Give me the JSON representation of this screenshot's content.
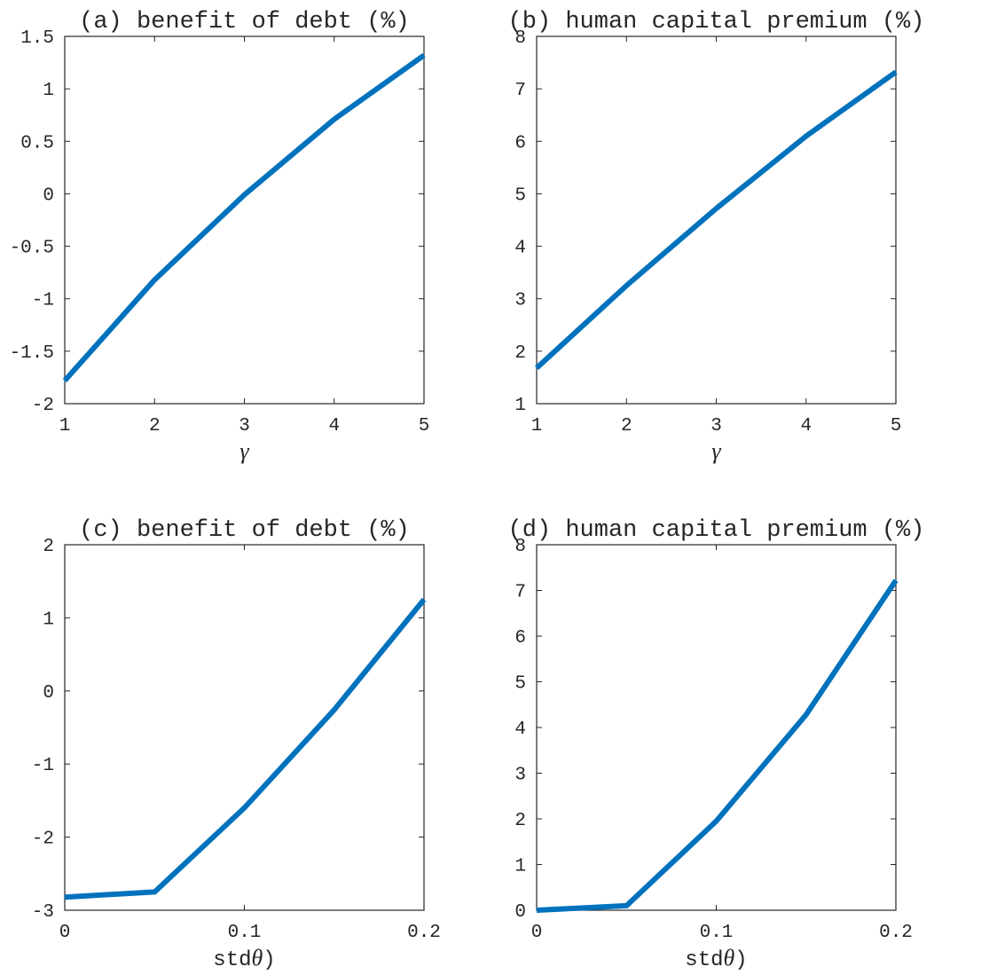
{
  "colors": {
    "series": "#0072bd",
    "axes": "#262626",
    "background": "#ffffff"
  },
  "chart_data": [
    {
      "type": "line",
      "title": "(a) benefit of debt (%)",
      "xlabel": "γ",
      "x": [
        1,
        2,
        3,
        4,
        5
      ],
      "series": [
        {
          "values": [
            -1.78,
            -0.82,
            -0.01,
            0.71,
            1.32
          ]
        }
      ],
      "xlim": [
        1,
        5
      ],
      "ylim": [
        -2,
        1.5
      ],
      "xticks": [
        1,
        2,
        3,
        4,
        5
      ],
      "xtick_labels": [
        "1",
        "2",
        "3",
        "4",
        "5"
      ],
      "yticks": [
        -2,
        -1.5,
        -1,
        -0.5,
        0,
        0.5,
        1,
        1.5
      ],
      "ytick_labels": [
        "-2",
        "-1.5",
        "-1",
        "-0.5",
        "0",
        "0.5",
        "1",
        "1.5"
      ],
      "grid": false
    },
    {
      "type": "line",
      "title": "(b) human capital premium (%)",
      "xlabel": "γ",
      "x": [
        1,
        2,
        3,
        4,
        5
      ],
      "series": [
        {
          "values": [
            1.68,
            3.25,
            4.72,
            6.1,
            7.32
          ]
        }
      ],
      "xlim": [
        1,
        5
      ],
      "ylim": [
        1,
        8
      ],
      "xticks": [
        1,
        2,
        3,
        4,
        5
      ],
      "xtick_labels": [
        "1",
        "2",
        "3",
        "4",
        "5"
      ],
      "yticks": [
        1,
        2,
        3,
        4,
        5,
        6,
        7,
        8
      ],
      "ytick_labels": [
        "1",
        "2",
        "3",
        "4",
        "5",
        "6",
        "7",
        "8"
      ],
      "grid": false
    },
    {
      "type": "line",
      "title": "(c) benefit of debt (%)",
      "xlabel_prefix": "std",
      "xlabel_symbol": "θ",
      "xlabel_suffix": ")",
      "x": [
        0,
        0.05,
        0.1,
        0.15,
        0.2
      ],
      "series": [
        {
          "values": [
            -2.82,
            -2.75,
            -1.6,
            -0.26,
            1.25
          ]
        }
      ],
      "xlim": [
        0,
        0.2
      ],
      "ylim": [
        -3,
        2
      ],
      "xticks": [
        0,
        0.1,
        0.2
      ],
      "xtick_labels": [
        "0",
        "0.1",
        "0.2"
      ],
      "yticks": [
        -3,
        -2,
        -1,
        0,
        1,
        2
      ],
      "ytick_labels": [
        "-3",
        "-2",
        "-1",
        "0",
        "1",
        "2"
      ],
      "grid": false
    },
    {
      "type": "line",
      "title": "(d) human capital premium (%)",
      "xlabel_prefix": "std",
      "xlabel_symbol": "θ",
      "xlabel_suffix": ")",
      "x": [
        0,
        0.05,
        0.1,
        0.15,
        0.2
      ],
      "series": [
        {
          "values": [
            0.0,
            0.1,
            1.95,
            4.28,
            7.22
          ]
        }
      ],
      "xlim": [
        0,
        0.2
      ],
      "ylim": [
        0,
        8
      ],
      "xticks": [
        0,
        0.1,
        0.2
      ],
      "xtick_labels": [
        "0",
        "0.1",
        "0.2"
      ],
      "yticks": [
        0,
        1,
        2,
        3,
        4,
        5,
        6,
        7,
        8
      ],
      "ytick_labels": [
        "0",
        "1",
        "2",
        "3",
        "4",
        "5",
        "6",
        "7",
        "8"
      ],
      "grid": false
    }
  ]
}
